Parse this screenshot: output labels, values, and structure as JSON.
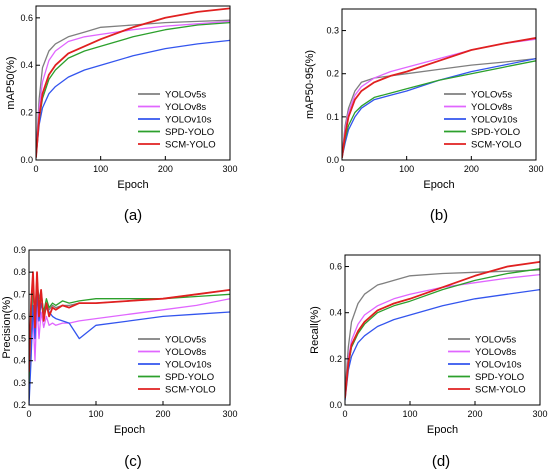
{
  "chart_data": [
    {
      "type": "line",
      "caption": "(a)",
      "xlabel": "Epoch",
      "ylabel": "mAP50(%)",
      "xlim": [
        0,
        300
      ],
      "ylim": [
        0,
        0.65
      ],
      "xticks": [
        0,
        100,
        200,
        300
      ],
      "yticks": [
        0.0,
        0.2,
        0.4,
        0.6
      ],
      "ytick_labels": [
        "0.0",
        "0.2",
        "0.4",
        "0.6"
      ],
      "legend_position": "bottom-right",
      "x": [
        0,
        5,
        10,
        20,
        30,
        50,
        75,
        100,
        150,
        200,
        250,
        300
      ],
      "series": [
        {
          "name": "YOLOv5s",
          "color": "#7f7f7f",
          "values": [
            0.02,
            0.26,
            0.39,
            0.46,
            0.49,
            0.52,
            0.54,
            0.56,
            0.57,
            0.58,
            0.585,
            0.59
          ]
        },
        {
          "name": "YOLOv8s",
          "color": "#e066ff",
          "values": [
            0.02,
            0.22,
            0.33,
            0.42,
            0.46,
            0.5,
            0.52,
            0.53,
            0.55,
            0.565,
            0.575,
            0.585
          ]
        },
        {
          "name": "YOLOv10s",
          "color": "#3355ee",
          "values": [
            0.01,
            0.15,
            0.22,
            0.28,
            0.31,
            0.35,
            0.38,
            0.4,
            0.44,
            0.47,
            0.49,
            0.505
          ]
        },
        {
          "name": "SPD-YOLO",
          "color": "#2ca02c",
          "values": [
            0.01,
            0.17,
            0.26,
            0.34,
            0.38,
            0.43,
            0.46,
            0.48,
            0.52,
            0.55,
            0.57,
            0.58
          ]
        },
        {
          "name": "SCM-YOLO",
          "color": "#e02020",
          "values": [
            0.01,
            0.18,
            0.28,
            0.36,
            0.4,
            0.45,
            0.48,
            0.51,
            0.56,
            0.6,
            0.625,
            0.64
          ]
        }
      ]
    },
    {
      "type": "line",
      "caption": "(b)",
      "xlabel": "Epoch",
      "ylabel": "mAP50-95(%)",
      "xlim": [
        0,
        300
      ],
      "ylim": [
        0,
        0.35
      ],
      "xticks": [
        0,
        100,
        200,
        300
      ],
      "yticks": [
        0.0,
        0.1,
        0.2,
        0.3
      ],
      "ytick_labels": [
        "0.0",
        "0.1",
        "0.2",
        "0.3"
      ],
      "legend_position": "bottom-right",
      "x": [
        0,
        5,
        10,
        20,
        30,
        50,
        75,
        100,
        150,
        200,
        250,
        300
      ],
      "series": [
        {
          "name": "YOLOv5s",
          "color": "#7f7f7f",
          "values": [
            0.01,
            0.08,
            0.12,
            0.16,
            0.18,
            0.19,
            0.195,
            0.2,
            0.21,
            0.22,
            0.227,
            0.235
          ]
        },
        {
          "name": "YOLOv8s",
          "color": "#e066ff",
          "values": [
            0.01,
            0.07,
            0.11,
            0.15,
            0.17,
            0.19,
            0.205,
            0.215,
            0.235,
            0.255,
            0.27,
            0.28
          ]
        },
        {
          "name": "YOLOv10s",
          "color": "#3355ee",
          "values": [
            0.005,
            0.04,
            0.07,
            0.1,
            0.12,
            0.14,
            0.15,
            0.16,
            0.185,
            0.205,
            0.22,
            0.235
          ]
        },
        {
          "name": "SPD-YOLO",
          "color": "#2ca02c",
          "values": [
            0.005,
            0.05,
            0.08,
            0.11,
            0.125,
            0.145,
            0.155,
            0.165,
            0.185,
            0.2,
            0.215,
            0.23
          ]
        },
        {
          "name": "SCM-YOLO",
          "color": "#e02020",
          "values": [
            0.005,
            0.06,
            0.1,
            0.14,
            0.16,
            0.18,
            0.195,
            0.205,
            0.23,
            0.255,
            0.27,
            0.283
          ]
        }
      ]
    },
    {
      "type": "line",
      "caption": "(c)",
      "xlabel": "Epoch",
      "ylabel": "Precision(%)",
      "xlim": [
        0,
        300
      ],
      "ylim": [
        0.2,
        0.9
      ],
      "xticks": [
        0,
        100,
        200,
        300
      ],
      "yticks": [
        0.2,
        0.3,
        0.4,
        0.5,
        0.6,
        0.7,
        0.8,
        0.9
      ],
      "ytick_labels": [
        "0.2",
        "0.3",
        "0.4",
        "0.5",
        "0.6",
        "0.7",
        "0.8",
        "0.9"
      ],
      "legend_position": "bottom-right",
      "x": [
        0,
        3,
        6,
        9,
        12,
        15,
        18,
        22,
        26,
        30,
        35,
        40,
        50,
        60,
        75,
        100,
        150,
        200,
        250,
        300
      ],
      "series": [
        {
          "name": "YOLOv5s",
          "color": "#7f7f7f",
          "values": [
            0.3,
            0.55,
            0.7,
            0.62,
            0.75,
            0.68,
            0.72,
            0.6,
            0.66,
            0.63,
            0.65,
            0.64,
            0.65,
            0.65,
            0.66,
            0.66,
            0.67,
            0.68,
            0.7,
            0.72
          ]
        },
        {
          "name": "YOLOv8s",
          "color": "#e066ff",
          "values": [
            0.25,
            0.45,
            0.6,
            0.4,
            0.65,
            0.5,
            0.62,
            0.55,
            0.6,
            0.56,
            0.57,
            0.56,
            0.57,
            0.57,
            0.58,
            0.59,
            0.61,
            0.63,
            0.65,
            0.68
          ]
        },
        {
          "name": "YOLOv10s",
          "color": "#3355ee",
          "values": [
            0.2,
            0.4,
            0.65,
            0.5,
            0.7,
            0.58,
            0.66,
            0.6,
            0.64,
            0.62,
            0.6,
            0.59,
            0.58,
            0.57,
            0.5,
            0.56,
            0.58,
            0.6,
            0.61,
            0.62
          ]
        },
        {
          "name": "SPD-YOLO",
          "color": "#2ca02c",
          "values": [
            0.3,
            0.6,
            0.75,
            0.6,
            0.78,
            0.65,
            0.7,
            0.62,
            0.68,
            0.64,
            0.66,
            0.65,
            0.67,
            0.66,
            0.67,
            0.68,
            0.68,
            0.68,
            0.69,
            0.7
          ]
        },
        {
          "name": "SCM-YOLO",
          "color": "#e02020",
          "values": [
            0.35,
            0.65,
            0.8,
            0.55,
            0.8,
            0.6,
            0.72,
            0.58,
            0.66,
            0.6,
            0.64,
            0.63,
            0.65,
            0.64,
            0.66,
            0.66,
            0.67,
            0.68,
            0.7,
            0.72
          ]
        }
      ]
    },
    {
      "type": "line",
      "caption": "(d)",
      "xlabel": "Epoch",
      "ylabel": "Recall(%)",
      "xlim": [
        0,
        300
      ],
      "ylim": [
        0,
        0.65
      ],
      "xticks": [
        0,
        100,
        200,
        300
      ],
      "yticks": [
        0.0,
        0.2,
        0.4,
        0.6
      ],
      "ytick_labels": [
        "0.0",
        "0.2",
        "0.4",
        "0.6"
      ],
      "legend_position": "bottom-right",
      "x": [
        0,
        5,
        10,
        20,
        30,
        50,
        75,
        100,
        150,
        200,
        250,
        300
      ],
      "series": [
        {
          "name": "YOLOv5s",
          "color": "#7f7f7f",
          "values": [
            0.05,
            0.25,
            0.36,
            0.44,
            0.48,
            0.52,
            0.54,
            0.56,
            0.57,
            0.575,
            0.58,
            0.585
          ]
        },
        {
          "name": "YOLOv8s",
          "color": "#e066ff",
          "values": [
            0.03,
            0.2,
            0.28,
            0.35,
            0.39,
            0.43,
            0.46,
            0.48,
            0.51,
            0.53,
            0.55,
            0.565
          ]
        },
        {
          "name": "YOLOv10s",
          "color": "#3355ee",
          "values": [
            0.02,
            0.15,
            0.21,
            0.27,
            0.3,
            0.34,
            0.37,
            0.39,
            0.43,
            0.46,
            0.48,
            0.5
          ]
        },
        {
          "name": "SPD-YOLO",
          "color": "#2ca02c",
          "values": [
            0.03,
            0.17,
            0.25,
            0.31,
            0.35,
            0.4,
            0.43,
            0.45,
            0.5,
            0.54,
            0.57,
            0.59
          ]
        },
        {
          "name": "SCM-YOLO",
          "color": "#e02020",
          "values": [
            0.03,
            0.18,
            0.26,
            0.32,
            0.36,
            0.41,
            0.44,
            0.46,
            0.51,
            0.56,
            0.6,
            0.62
          ]
        }
      ]
    }
  ]
}
